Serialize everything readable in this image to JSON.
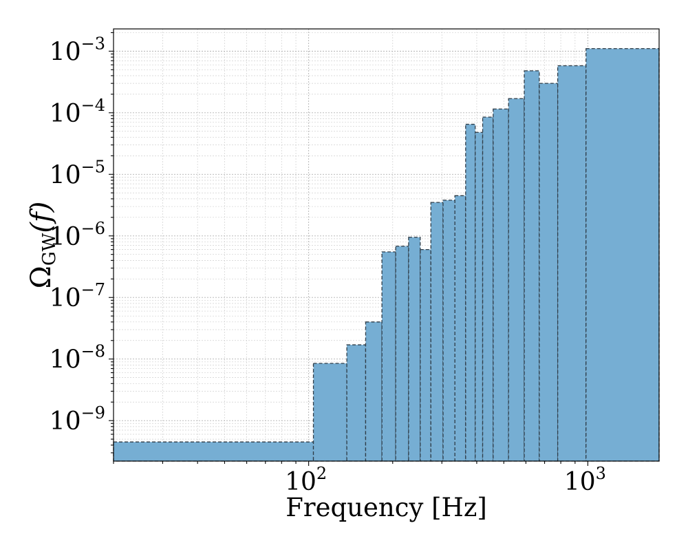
{
  "chart_data": {
    "type": "bar",
    "style": "histogram-steps",
    "xlabel": "Frequency [Hz]",
    "ylabel_base": "Ω",
    "ylabel_sub": "GW",
    "ylabel_arg": "(f)",
    "xscale": "log",
    "yscale": "log",
    "xlim": [
      20,
      1800
    ],
    "ylim": [
      2.2e-10,
      0.0023
    ],
    "grid": true,
    "bar_color": "#76aed3",
    "edge_color": "#2f3c47",
    "x_ticks": [
      {
        "value": 100,
        "base": "10",
        "exp": "2"
      },
      {
        "value": 1000,
        "base": "10",
        "exp": "3"
      }
    ],
    "y_ticks": [
      {
        "value": 1e-09,
        "base": "10",
        "exp": "−9"
      },
      {
        "value": 1e-08,
        "base": "10",
        "exp": "−8"
      },
      {
        "value": 1e-07,
        "base": "10",
        "exp": "−7"
      },
      {
        "value": 1e-06,
        "base": "10",
        "exp": "−6"
      },
      {
        "value": 1e-05,
        "base": "10",
        "exp": "−5"
      },
      {
        "value": 0.0001,
        "base": "10",
        "exp": "−4"
      },
      {
        "value": 0.001,
        "base": "10",
        "exp": "−3"
      }
    ],
    "bins": [
      {
        "x0": 20,
        "x1": 104,
        "value": 4.5e-10
      },
      {
        "x0": 104,
        "x1": 137,
        "value": 8.5e-09
      },
      {
        "x0": 137,
        "x1": 160,
        "value": 1.7e-08
      },
      {
        "x0": 160,
        "x1": 183,
        "value": 4e-08
      },
      {
        "x0": 183,
        "x1": 205,
        "value": 5.5e-07
      },
      {
        "x0": 205,
        "x1": 228,
        "value": 6.8e-07
      },
      {
        "x0": 228,
        "x1": 251,
        "value": 9.5e-07
      },
      {
        "x0": 251,
        "x1": 274,
        "value": 6e-07
      },
      {
        "x0": 274,
        "x1": 303,
        "value": 3.5e-06
      },
      {
        "x0": 303,
        "x1": 334,
        "value": 3.8e-06
      },
      {
        "x0": 334,
        "x1": 365,
        "value": 4.5e-06
      },
      {
        "x0": 365,
        "x1": 395,
        "value": 6.5e-05
      },
      {
        "x0": 395,
        "x1": 420,
        "value": 4.8e-05
      },
      {
        "x0": 420,
        "x1": 458,
        "value": 8.5e-05
      },
      {
        "x0": 458,
        "x1": 520,
        "value": 0.000115
      },
      {
        "x0": 520,
        "x1": 592,
        "value": 0.00017
      },
      {
        "x0": 592,
        "x1": 670,
        "value": 0.00048
      },
      {
        "x0": 670,
        "x1": 780,
        "value": 0.0003
      },
      {
        "x0": 780,
        "x1": 985,
        "value": 0.00058
      },
      {
        "x0": 985,
        "x1": 1800,
        "value": 0.0011
      }
    ]
  }
}
